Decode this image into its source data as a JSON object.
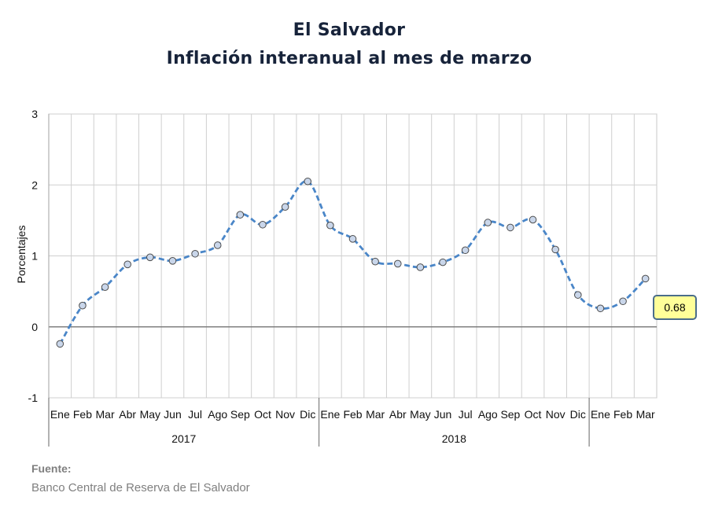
{
  "chart_data": {
    "type": "line",
    "title": "El Salvador",
    "subtitle": "Inflación interanual al mes de marzo",
    "ylabel": "Porcentajes",
    "xlabel": "",
    "ylim": [
      -1,
      3
    ],
    "yticks": [
      "-1",
      "0",
      "1",
      "2",
      "3"
    ],
    "grid": true,
    "line_color": "#4a86c8",
    "marker_color": "#c9d6ea",
    "categories": [
      "Ene",
      "Feb",
      "Mar",
      "Abr",
      "May",
      "Jun",
      "Jul",
      "Ago",
      "Sep",
      "Oct",
      "Nov",
      "Dic",
      "Ene",
      "Feb",
      "Mar",
      "Abr",
      "May",
      "Jun",
      "Jul",
      "Ago",
      "Sep",
      "Oct",
      "Nov",
      "Dic",
      "Ene",
      "Feb",
      "Mar"
    ],
    "groups": [
      {
        "label": "2017",
        "count": 12
      },
      {
        "label": "2018",
        "count": 12
      },
      {
        "label": "",
        "count": 3
      }
    ],
    "series": [
      {
        "values": [
          -0.24,
          0.3,
          0.56,
          0.88,
          0.98,
          0.93,
          1.03,
          1.15,
          1.58,
          1.44,
          1.69,
          2.05,
          1.43,
          1.24,
          0.92,
          0.89,
          0.84,
          0.91,
          1.08,
          1.47,
          1.4,
          1.51,
          1.09,
          0.45,
          0.26,
          0.36,
          0.68
        ]
      }
    ],
    "annotation": "0.68"
  },
  "source": {
    "label": "Fuente:",
    "text": "Banco Central de Reserva de El Salvador"
  }
}
